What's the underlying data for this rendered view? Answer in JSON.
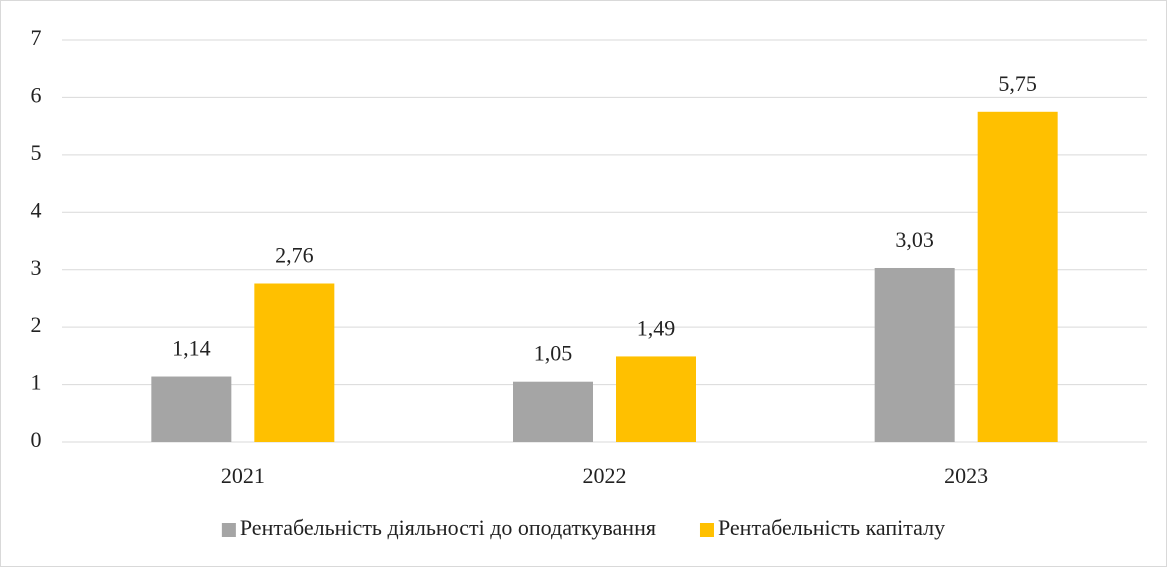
{
  "chart_data": {
    "type": "bar",
    "categories": [
      "2021",
      "2022",
      "2023"
    ],
    "series": [
      {
        "name": "Рентабельність діяльності до оподаткування",
        "color": "#a5a5a5",
        "values": [
          1.14,
          1.05,
          3.03
        ],
        "value_labels": [
          "1,14",
          "1,05",
          "3,03"
        ]
      },
      {
        "name": "Рентабельність капіталу",
        "color": "#ffc000",
        "values": [
          2.76,
          1.49,
          5.75
        ],
        "value_labels": [
          "2,76",
          "1,49",
          "5,75"
        ]
      }
    ],
    "ylim": [
      0,
      7
    ],
    "yticks": [
      0,
      1,
      2,
      3,
      4,
      5,
      6,
      7
    ],
    "grid": true,
    "legend": "bottom"
  }
}
